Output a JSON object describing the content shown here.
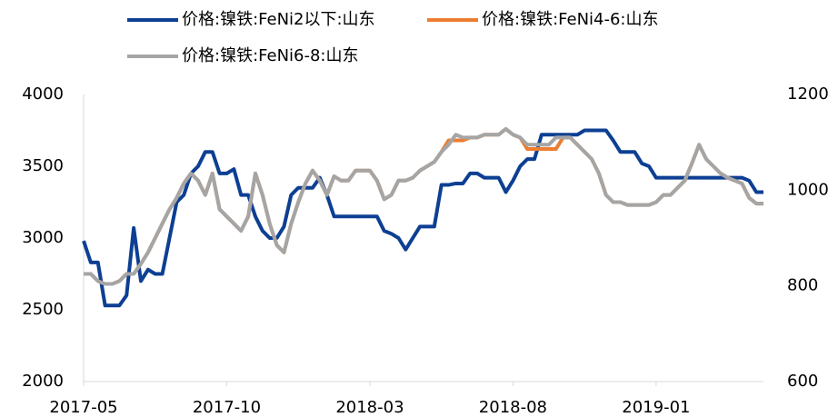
{
  "chart_data": {
    "type": "line",
    "categories": [
      "2017-05",
      null,
      null,
      null,
      null,
      null,
      null,
      null,
      null,
      null,
      null,
      null,
      null,
      null,
      null,
      null,
      null,
      null,
      null,
      null,
      "2017-10",
      null,
      null,
      null,
      null,
      null,
      null,
      null,
      null,
      null,
      null,
      null,
      null,
      null,
      null,
      null,
      null,
      null,
      null,
      null,
      "2018-03",
      null,
      null,
      null,
      null,
      null,
      null,
      null,
      null,
      null,
      null,
      null,
      null,
      null,
      null,
      null,
      null,
      null,
      null,
      null,
      "2018-08",
      null,
      null,
      null,
      null,
      null,
      null,
      null,
      null,
      null,
      null,
      null,
      null,
      null,
      null,
      null,
      null,
      null,
      null,
      null,
      "2019-01",
      null,
      null,
      null,
      null,
      null,
      null,
      null,
      null,
      null,
      null,
      null,
      null,
      null,
      null,
      null
    ],
    "series": [
      {
        "name": "价格:镍铁:FeNi2以下:山东",
        "color": "#0d3f93",
        "axis": "y",
        "values": [
          2980,
          2830,
          2830,
          2530,
          2530,
          2530,
          2600,
          3070,
          2700,
          2780,
          2750,
          2750,
          3000,
          3250,
          3300,
          3450,
          3500,
          3600,
          3600,
          3450,
          3450,
          3480,
          3300,
          3300,
          3150,
          3050,
          3000,
          3000,
          3080,
          3300,
          3350,
          3350,
          3350,
          3420,
          3300,
          3150,
          3150,
          3150,
          3150,
          3150,
          3150,
          3150,
          3050,
          3030,
          3000,
          2920,
          3000,
          3080,
          3080,
          3080,
          3370,
          3370,
          3380,
          3380,
          3450,
          3450,
          3420,
          3420,
          3420,
          3320,
          3400,
          3500,
          3550,
          3550,
          3720,
          3720,
          3720,
          3720,
          3720,
          3720,
          3750,
          3750,
          3750,
          3750,
          3680,
          3600,
          3600,
          3600,
          3520,
          3500,
          3420,
          3420,
          3420,
          3420,
          3420,
          3420,
          3420,
          3420,
          3420,
          3420,
          3420,
          3420,
          3420,
          3400,
          3320,
          3320
        ]
      },
      {
        "name": "价格:镍铁:FeNi4-6:山东",
        "color": "#ed7d31",
        "axis": "y2",
        "values": [
          825,
          825,
          810,
          804,
          804,
          810,
          825,
          825,
          846,
          870,
          900,
          930,
          960,
          984,
          1014,
          1035,
          1020,
          990,
          1035,
          960,
          945,
          930,
          915,
          945,
          1035,
          990,
          930,
          885,
          870,
          930,
          975,
          1014,
          1041,
          1020,
          990,
          1029,
          1020,
          1020,
          1041,
          1041,
          1041,
          1020,
          981,
          990,
          1020,
          1020,
          1026,
          1041,
          1050,
          1059,
          1080,
          1104,
          1104,
          1104,
          1110,
          1110,
          1116,
          1116,
          1116,
          1128,
          1116,
          1110,
          1086,
          1086,
          1086,
          1086,
          1086,
          1110,
          1110,
          1095,
          1080,
          1065,
          1035,
          990,
          975,
          975,
          969,
          969,
          969,
          969,
          975,
          990,
          990,
          1005,
          1020,
          1056,
          1095,
          1065,
          1050,
          1035,
          1026,
          1020,
          1014,
          984,
          972,
          972
        ]
      },
      {
        "name": "价格:镍铁:FeNi6-8:山东",
        "color": "#a5a5a5",
        "axis": "y2",
        "values": [
          825,
          825,
          810,
          804,
          804,
          810,
          825,
          825,
          846,
          870,
          900,
          930,
          960,
          984,
          1014,
          1035,
          1020,
          990,
          1035,
          960,
          945,
          930,
          915,
          945,
          1035,
          990,
          930,
          885,
          870,
          930,
          975,
          1014,
          1041,
          1020,
          990,
          1029,
          1020,
          1020,
          1041,
          1041,
          1041,
          1020,
          981,
          990,
          1020,
          1020,
          1026,
          1041,
          1050,
          1059,
          1080,
          1095,
          1116,
          1110,
          1110,
          1110,
          1116,
          1116,
          1116,
          1128,
          1116,
          1110,
          1095,
          1095,
          1095,
          1095,
          1110,
          1110,
          1110,
          1095,
          1080,
          1065,
          1035,
          990,
          975,
          975,
          969,
          969,
          969,
          969,
          975,
          990,
          990,
          1005,
          1020,
          1056,
          1095,
          1065,
          1050,
          1035,
          1026,
          1020,
          1014,
          984,
          972,
          972
        ]
      }
    ],
    "ylim": [
      2000,
      4000
    ],
    "yticks": [
      2000,
      2500,
      3000,
      3500,
      4000
    ],
    "y2lim": [
      600,
      1200
    ],
    "y2ticks": [
      600,
      800,
      1000,
      1200
    ]
  }
}
